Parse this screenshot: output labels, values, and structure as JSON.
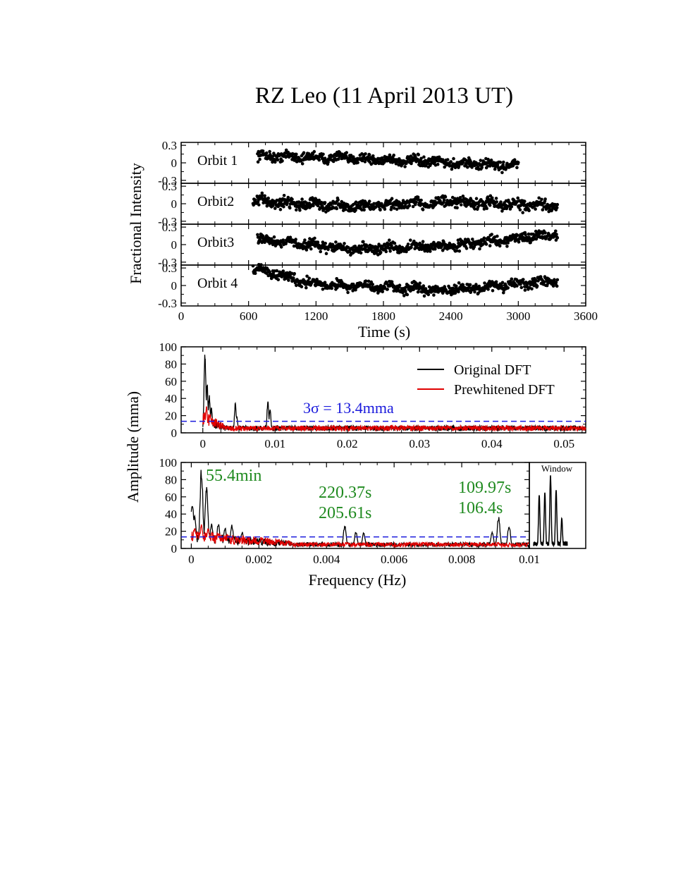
{
  "title": "RZ Leo (11 April 2013 UT)",
  "colors": {
    "original": "#000000",
    "prewhitened": "#e00000",
    "threshold": "#1a1adc",
    "annotation": "#1f8a1f"
  },
  "chart_data": [
    {
      "type": "scatter",
      "panel": "light-curves",
      "ylabel": "Fractional Intensity",
      "xlabel": "Time (s)",
      "xlim": [
        0,
        3600
      ],
      "x_ticks": [
        "0",
        "600",
        "1200",
        "1800",
        "2400",
        "3000",
        "3600"
      ],
      "ylim": [
        -0.35,
        0.35
      ],
      "y_ticks": [
        "0.3",
        "0",
        "-0.3"
      ],
      "series": [
        {
          "name": "Orbit 1",
          "t_start": 680,
          "t_end": 3000,
          "trend": [
            [
              680,
              0.12
            ],
            [
              1500,
              0.08
            ],
            [
              2400,
              0.0
            ],
            [
              3000,
              -0.05
            ]
          ],
          "scatter": 0.07
        },
        {
          "name": "Orbit2",
          "t_start": 640,
          "t_end": 3350,
          "trend": [
            [
              640,
              0.05
            ],
            [
              1500,
              -0.05
            ],
            [
              2400,
              0.03
            ],
            [
              3350,
              -0.05
            ]
          ],
          "scatter": 0.08
        },
        {
          "name": "Orbit3",
          "t_start": 680,
          "t_end": 3350,
          "trend": [
            [
              680,
              0.1
            ],
            [
              1500,
              -0.08
            ],
            [
              2400,
              -0.02
            ],
            [
              3350,
              0.18
            ]
          ],
          "scatter": 0.07
        },
        {
          "name": "Orbit 4",
          "t_start": 640,
          "t_end": 3350,
          "trend": [
            [
              640,
              0.3
            ],
            [
              1200,
              0.02
            ],
            [
              2400,
              -0.08
            ],
            [
              3350,
              0.08
            ]
          ],
          "scatter": 0.07
        }
      ]
    },
    {
      "type": "line",
      "panel": "dft-full",
      "xlim": [
        -0.003,
        0.053
      ],
      "x_ticks": [
        "0",
        "0.01",
        "0.02",
        "0.03",
        "0.04",
        "0.05"
      ],
      "ylim": [
        0,
        100
      ],
      "y_ticks": [
        "0",
        "20",
        "40",
        "60",
        "80",
        "100"
      ],
      "series": [
        {
          "name": "Original DFT",
          "peaks": [
            [
              0.0003,
              100
            ],
            [
              0.0006,
              60
            ],
            [
              0.0009,
              45
            ],
            [
              0.0012,
              30
            ],
            [
              0.0045,
              35
            ],
            [
              0.0047,
              20
            ],
            [
              0.009,
              38
            ],
            [
              0.0093,
              28
            ]
          ],
          "noise": 6
        },
        {
          "name": "Prewhitened DFT",
          "peaks": [
            [
              0.0005,
              32
            ],
            [
              0.001,
              22
            ]
          ],
          "noise": 6
        }
      ],
      "threshold": {
        "label": "3σ = 13.4mma",
        "value": 13.4
      }
    },
    {
      "type": "line",
      "panel": "dft-zoom",
      "xlabel": "Frequency (Hz)",
      "ylabel": "Amplitude (mma)",
      "xlim": [
        -0.0003,
        0.01
      ],
      "x_ticks": [
        "0",
        "0.002",
        "0.004",
        "0.006",
        "0.008",
        "0.01"
      ],
      "ylim": [
        0,
        100
      ],
      "y_ticks": [
        "0",
        "20",
        "40",
        "60",
        "80",
        "100"
      ],
      "series": [
        {
          "name": "Original DFT",
          "peaks": [
            [
              3e-05,
              55
            ],
            [
              0.0001,
              40
            ],
            [
              0.0003,
              95
            ],
            [
              0.00045,
              75
            ],
            [
              0.0006,
              30
            ],
            [
              0.0008,
              30
            ],
            [
              0.001,
              25
            ],
            [
              0.0012,
              28
            ],
            [
              0.0015,
              20
            ],
            [
              0.00454,
              28
            ],
            [
              0.00487,
              20
            ],
            [
              0.0051,
              19
            ],
            [
              0.00909,
              38
            ],
            [
              0.0094,
              28
            ],
            [
              0.0089,
              20
            ]
          ],
          "noise": 5
        },
        {
          "name": "Prewhitened DFT",
          "peaks": [
            [
              0.0001,
              25
            ],
            [
              0.0003,
              28
            ],
            [
              0.0005,
              24
            ],
            [
              0.0008,
              18
            ],
            [
              0.0011,
              15
            ]
          ],
          "noise": 5
        }
      ],
      "threshold": {
        "value": 13.4
      },
      "annotations": [
        {
          "text": "55.4min"
        },
        {
          "text": "220.37s"
        },
        {
          "text": "205.61s"
        },
        {
          "text": "109.97s"
        },
        {
          "text": "106.4s"
        }
      ],
      "inset": {
        "label": "Window",
        "peaks": [
          [
            -2,
            62
          ],
          [
            -1,
            65
          ],
          [
            0,
            85
          ],
          [
            1,
            68
          ],
          [
            2,
            35
          ]
        ]
      }
    }
  ]
}
